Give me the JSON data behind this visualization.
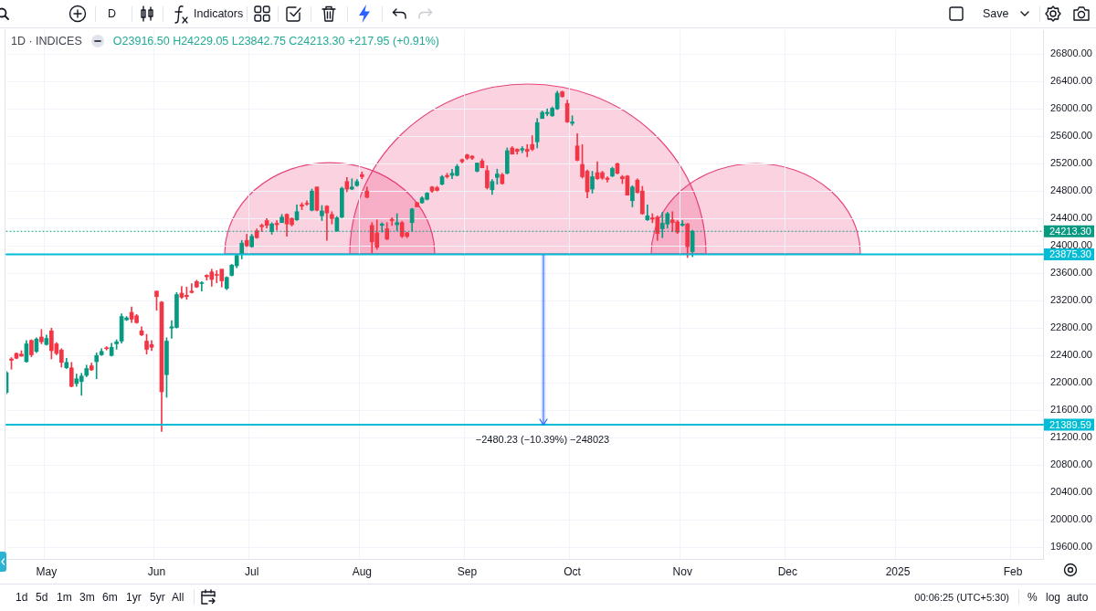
{
  "chart_data": {
    "type": "candlestick",
    "title": "1D · INDICES",
    "subtitle": "O23916.50 H24229.05 L23842.75 C24213.30 +217.95 (+0.91%)",
    "categories": [
      null,
      null,
      null,
      null,
      null,
      null,
      null,
      null,
      "May",
      null,
      null,
      null,
      null,
      null,
      null,
      null,
      null,
      null,
      null,
      null,
      null,
      null,
      null,
      null,
      null,
      null,
      null,
      null,
      null,
      null,
      "Jun",
      null,
      null,
      null,
      null,
      null,
      null,
      null,
      null,
      null,
      null,
      null,
      null,
      null,
      null,
      null,
      null,
      null,
      null,
      "Jul",
      null,
      null,
      null,
      null,
      null,
      null,
      null,
      null,
      null,
      null,
      null,
      null,
      null,
      null,
      null,
      null,
      null,
      null,
      null,
      null,
      null,
      "Aug",
      null,
      null,
      null,
      null,
      null,
      null,
      null,
      null,
      null,
      null,
      null,
      null,
      null,
      null,
      null,
      null,
      null,
      null,
      null,
      null,
      "Sep",
      null,
      null,
      null,
      null,
      null,
      null,
      null,
      null,
      null,
      null,
      null,
      null,
      null,
      null,
      null,
      null,
      null,
      null,
      null,
      null,
      "Oct",
      null,
      null,
      null,
      null,
      null,
      null,
      null,
      null,
      null,
      null,
      null,
      null,
      null,
      null,
      null,
      null,
      null,
      null,
      null,
      null,
      null,
      "Nov",
      null,
      null,
      null,
      null,
      null,
      null,
      null,
      null,
      null,
      null,
      null,
      null,
      null,
      null,
      null,
      null,
      null,
      null,
      null,
      null,
      "Dec",
      null,
      null,
      null,
      null,
      null,
      null,
      null,
      null,
      null,
      null,
      null,
      null,
      null,
      null,
      null,
      null,
      null,
      null,
      null,
      null,
      null,
      "2025",
      null,
      null,
      null,
      null,
      null,
      null,
      null,
      null,
      null,
      null,
      null,
      null,
      null,
      null,
      null,
      null,
      null,
      null,
      null,
      null,
      null,
      null,
      "Feb",
      null,
      null,
      null,
      null,
      null,
      null
    ],
    "ohlc": [
      [
        21860,
        22170,
        21840,
        22150
      ],
      [
        22350,
        22370,
        22200,
        22330
      ],
      [
        22430,
        22440,
        22350,
        22360
      ],
      [
        22420,
        22470,
        22390,
        22390
      ],
      [
        22310,
        22620,
        22300,
        22570
      ],
      [
        22620,
        22630,
        22380,
        22410
      ],
      [
        22460,
        22660,
        22440,
        22640
      ],
      [
        22670,
        22780,
        22570,
        22600
      ],
      [
        22560,
        22700,
        22550,
        22650
      ],
      [
        22760,
        22800,
        22350,
        22470
      ],
      [
        22570,
        22590,
        22410,
        22430
      ],
      [
        22480,
        22500,
        22230,
        22300
      ],
      [
        22220,
        22360,
        22210,
        22300
      ],
      [
        22220,
        22300,
        21940,
        21950
      ],
      [
        21990,
        22130,
        21950,
        22060
      ],
      [
        22020,
        22140,
        21820,
        22100
      ],
      [
        22110,
        22260,
        22090,
        22210
      ],
      [
        22250,
        22290,
        22180,
        22190
      ],
      [
        22310,
        22440,
        22060,
        22400
      ],
      [
        22410,
        22500,
        22400,
        22460
      ],
      [
        22510,
        22530,
        22480,
        22500
      ],
      [
        22400,
        22580,
        22390,
        22520
      ],
      [
        22570,
        22630,
        22490,
        22600
      ],
      [
        22610,
        23010,
        22580,
        22970
      ],
      [
        22920,
        22970,
        22910,
        22950
      ],
      [
        23030,
        23110,
        22880,
        22930
      ],
      [
        22980,
        23000,
        22870,
        22880
      ],
      [
        22760,
        22820,
        22690,
        22700
      ],
      [
        22610,
        22710,
        22420,
        22490
      ],
      [
        22560,
        22620,
        22470,
        22520
      ],
      [
        23340,
        23340,
        23060,
        23260
      ],
      [
        23180,
        23190,
        21290,
        21870
      ],
      [
        22120,
        22660,
        21790,
        22610
      ],
      [
        22800,
        22910,
        22650,
        22820
      ],
      [
        22810,
        23320,
        22800,
        23290
      ],
      [
        23310,
        23410,
        23230,
        23250
      ],
      [
        23280,
        23400,
        23220,
        23260
      ],
      [
        23340,
        23450,
        23310,
        23320
      ],
      [
        23480,
        23500,
        23390,
        23400
      ],
      [
        23450,
        23480,
        23340,
        23460
      ],
      [
        23570,
        23580,
        23500,
        23550
      ],
      [
        23620,
        23660,
        23410,
        23510
      ],
      [
        23580,
        23640,
        23460,
        23570
      ],
      [
        23660,
        23660,
        23400,
        23490
      ],
      [
        23380,
        23550,
        23360,
        23540
      ],
      [
        23570,
        23730,
        23560,
        23720
      ],
      [
        23710,
        23880,
        23680,
        23860
      ],
      [
        23880,
        24080,
        23810,
        24040
      ],
      [
        24080,
        24170,
        23990,
        24000
      ],
      [
        23990,
        24170,
        23980,
        24140
      ],
      [
        24220,
        24250,
        24110,
        24120
      ],
      [
        24300,
        24320,
        24210,
        24280
      ],
      [
        24370,
        24400,
        24260,
        24300
      ],
      [
        24210,
        24340,
        24170,
        24320
      ],
      [
        24330,
        24370,
        24230,
        24310
      ],
      [
        24340,
        24460,
        24340,
        24420
      ],
      [
        24460,
        24470,
        24140,
        24320
      ],
      [
        24400,
        24410,
        24290,
        24310
      ],
      [
        24380,
        24600,
        24370,
        24500
      ],
      [
        24600,
        24630,
        24530,
        24580
      ],
      [
        24620,
        24660,
        24590,
        24610
      ],
      [
        24520,
        24830,
        24510,
        24800
      ],
      [
        24860,
        24860,
        24510,
        24520
      ],
      [
        24440,
        24590,
        24370,
        24510
      ],
      [
        24580,
        24590,
        24080,
        24480
      ],
      [
        24460,
        24500,
        24320,
        24400
      ],
      [
        24220,
        24430,
        24210,
        24410
      ],
      [
        24420,
        24860,
        24410,
        24840
      ],
      [
        24940,
        25000,
        24790,
        24830
      ],
      [
        24830,
        24980,
        24820,
        24860
      ],
      [
        24880,
        24970,
        24870,
        24940
      ],
      [
        25040,
        25080,
        24980,
        25010
      ],
      [
        24800,
        24860,
        24700,
        24710
      ],
      [
        24300,
        24340,
        23900,
        24060
      ],
      [
        24190,
        24380,
        23950,
        23980
      ],
      [
        24300,
        24340,
        24200,
        24320
      ],
      [
        24250,
        24340,
        24090,
        24100
      ],
      [
        24390,
        24410,
        24300,
        24370
      ],
      [
        24310,
        24470,
        24220,
        24340
      ],
      [
        24340,
        24360,
        24120,
        24140
      ],
      [
        24190,
        24200,
        24120,
        24140
      ],
      [
        24340,
        24550,
        24210,
        24540
      ],
      [
        24630,
        24640,
        24570,
        24570
      ],
      [
        24630,
        24720,
        24620,
        24700
      ],
      [
        24680,
        24780,
        24670,
        24770
      ],
      [
        24860,
        24870,
        24780,
        24800
      ],
      [
        24850,
        24870,
        24800,
        24810
      ],
      [
        24900,
        25030,
        24890,
        25010
      ],
      [
        25030,
        25060,
        24990,
        25010
      ],
      [
        25030,
        25120,
        24980,
        25060
      ],
      [
        25030,
        25190,
        25020,
        25160
      ],
      [
        25260,
        25270,
        25210,
        25230
      ],
      [
        25330,
        25340,
        25260,
        25280
      ],
      [
        25310,
        25320,
        25260,
        25280
      ],
      [
        25090,
        25210,
        25080,
        25210
      ],
      [
        25240,
        25270,
        25140,
        25140
      ],
      [
        25100,
        25170,
        24830,
        24850
      ],
      [
        24820,
        24970,
        24750,
        24940
      ],
      [
        25000,
        25120,
        24900,
        25050
      ],
      [
        25040,
        25060,
        24900,
        24910
      ],
      [
        25060,
        25430,
        25050,
        25390
      ],
      [
        25430,
        25450,
        25340,
        25340
      ],
      [
        25410,
        25420,
        25340,
        25380
      ],
      [
        25400,
        25450,
        25360,
        25420
      ],
      [
        25410,
        25480,
        25300,
        25380
      ],
      [
        25480,
        25610,
        25390,
        25410
      ],
      [
        25520,
        25860,
        25430,
        25800
      ],
      [
        25860,
        25970,
        25860,
        25950
      ],
      [
        25930,
        26000,
        25900,
        25950
      ],
      [
        25900,
        26030,
        25890,
        26010
      ],
      [
        26000,
        26260,
        25990,
        26230
      ],
      [
        26250,
        26260,
        26170,
        26180
      ],
      [
        26080,
        26130,
        25800,
        25810
      ],
      [
        25790,
        25900,
        25760,
        25810
      ],
      [
        25460,
        25640,
        25240,
        25250
      ],
      [
        25190,
        25480,
        24990,
        25010
      ],
      [
        25090,
        25110,
        24700,
        24790
      ],
      [
        24830,
        25090,
        24770,
        25010
      ],
      [
        25070,
        25230,
        24970,
        24980
      ],
      [
        25070,
        25090,
        24970,
        24990
      ],
      [
        24990,
        25010,
        24930,
        24970
      ],
      [
        25020,
        25150,
        25010,
        25130
      ],
      [
        25200,
        25210,
        25050,
        25060
      ],
      [
        25010,
        25030,
        24910,
        24980
      ],
      [
        25020,
        25030,
        24740,
        24740
      ],
      [
        24660,
        24880,
        24570,
        24860
      ],
      [
        24960,
        24980,
        24770,
        24780
      ],
      [
        24800,
        24870,
        24460,
        24470
      ],
      [
        24380,
        24600,
        24370,
        24440
      ],
      [
        24410,
        24470,
        24340,
        24390
      ],
      [
        24420,
        24440,
        24080,
        24180
      ],
      [
        24250,
        24490,
        24120,
        24330
      ],
      [
        24320,
        24490,
        24260,
        24470
      ],
      [
        24380,
        24500,
        24210,
        24340
      ],
      [
        24350,
        24370,
        24180,
        24200
      ],
      [
        24300,
        24370,
        24290,
        24320
      ],
      [
        24320,
        24330,
        23830,
        23990
      ],
      [
        23916.5,
        24229.05,
        23842.75,
        24213.3
      ],
      null,
      null,
      null,
      null,
      null,
      null,
      null,
      null,
      null,
      null,
      null,
      null,
      null,
      null,
      null,
      null,
      null,
      null,
      null,
      null,
      null,
      null,
      null,
      null,
      null,
      null,
      null,
      null,
      null,
      null,
      null,
      null,
      null,
      null,
      null,
      null,
      null,
      null,
      null,
      null,
      null,
      null,
      null,
      null,
      null,
      null,
      null,
      null,
      null,
      null,
      null,
      null,
      null,
      null,
      null,
      null,
      null,
      null,
      null,
      null,
      null,
      null,
      null,
      null,
      null,
      null,
      null,
      null,
      null,
      null
    ],
    "colors": [
      "#089981",
      "#f23645",
      "#f23645",
      "#f23645",
      "#089981",
      "#f23645",
      "#089981",
      "#f23645",
      "#089981",
      "#f23645",
      "#f23645",
      "#f23645",
      "#089981",
      "#f23645",
      "#089981",
      "#089981",
      "#089981",
      "#f23645",
      "#089981",
      "#089981",
      "#f23645",
      "#089981",
      "#089981",
      "#089981",
      "#089981",
      "#f23645",
      "#f23645",
      "#f23645",
      "#f23645",
      "#f23645",
      "#f23645",
      "#f23645",
      "#089981",
      "#089981",
      "#089981",
      "#f23645",
      "#f23645",
      "#f23645",
      "#f23645",
      "#089981",
      "#f23645",
      "#f23645",
      "#f23645",
      "#f23645",
      "#089981",
      "#089981",
      "#089981",
      "#089981",
      "#f23645",
      "#089981",
      "#f23645",
      "#f23645",
      "#f23645",
      "#089981",
      "#f23645",
      "#089981",
      "#f23645",
      "#f23645",
      "#089981",
      "#f23645",
      "#f23645",
      "#089981",
      "#f23645",
      "#089981",
      "#f23645",
      "#f23645",
      "#089981",
      "#089981",
      "#f23645",
      "#089981",
      "#089981",
      "#f23645",
      "#f23645",
      "#f23645",
      "#f23645",
      "#089981",
      "#f23645",
      "#f23645",
      "#089981",
      "#f23645",
      "#f23645",
      "#089981",
      "#f23645",
      "#089981",
      "#089981",
      "#f23645",
      "#f23645",
      "#089981",
      "#f23645",
      "#089981",
      "#089981",
      "#f23645",
      "#f23645",
      "#f23645",
      "#089981",
      "#f23645",
      "#f23645",
      "#089981",
      "#089981",
      "#f23645",
      "#089981",
      "#f23645",
      "#f23645",
      "#089981",
      "#f23645",
      "#f23645",
      "#089981",
      "#089981",
      "#089981",
      "#089981",
      "#089981",
      "#f23645",
      "#f23645",
      "#089981",
      "#f23645",
      "#f23645",
      "#f23645",
      "#089981",
      "#f23645",
      "#f23645",
      "#f23645",
      "#089981",
      "#f23645",
      "#f23645",
      "#f23645",
      "#089981",
      "#f23645",
      "#f23645",
      "#089981",
      "#f23645",
      "#f23645",
      "#089981",
      "#089981",
      "#f23645",
      "#f23645",
      "#089981",
      "#f23645",
      "#089981",
      null,
      null,
      null,
      null,
      null,
      null,
      null,
      null,
      null,
      null,
      null,
      null,
      null,
      null,
      null,
      null,
      null,
      null,
      null,
      null,
      null,
      null,
      null,
      null,
      null,
      null,
      null,
      null,
      null,
      null,
      null,
      null,
      null,
      null,
      null,
      null,
      null,
      null,
      null,
      null,
      null,
      null,
      null,
      null,
      null,
      null,
      null,
      null,
      null,
      null,
      null,
      null,
      null,
      null,
      null,
      null,
      null,
      null,
      null,
      null,
      null,
      null,
      null,
      null,
      null,
      null,
      null,
      null,
      null,
      null
    ],
    "ylim": [
      19430,
      27150
    ],
    "yticks": [
      {
        "value": 19600,
        "label": "19600.00"
      },
      {
        "value": 20000,
        "label": "20000.00"
      },
      {
        "value": 20400,
        "label": "20400.00"
      },
      {
        "value": 20800,
        "label": "20800.00"
      },
      {
        "value": 21200,
        "label": "21200.00"
      },
      {
        "value": 21600,
        "label": "21600.00"
      },
      {
        "value": 22000,
        "label": "22000.00"
      },
      {
        "value": 22400,
        "label": "22400.00"
      },
      {
        "value": 22800,
        "label": "22800.00"
      },
      {
        "value": 23200,
        "label": "23200.00"
      },
      {
        "value": 23600,
        "label": "23600.00"
      },
      {
        "value": 24000,
        "label": "24000.00"
      },
      {
        "value": 24400,
        "label": "24400.00"
      },
      {
        "value": 24800,
        "label": "24800.00"
      },
      {
        "value": 25200,
        "label": "25200.00"
      },
      {
        "value": 25600,
        "label": "25600.00"
      },
      {
        "value": 26000,
        "label": "26000.00"
      },
      {
        "value": 26400,
        "label": "26400.00"
      },
      {
        "value": 26800,
        "label": "26800.00"
      }
    ],
    "ref_lines": [
      {
        "axis": "y",
        "value": 23875.3,
        "label": "23875.30",
        "color": "#00bcd4"
      },
      {
        "axis": "y",
        "value": 21389.59,
        "label": "21389.59",
        "color": "#00bcd4"
      },
      {
        "axis": "y",
        "value": 24213.3,
        "label": "24213.30",
        "color": "#089981",
        "line_style": "dotted"
      }
    ],
    "annotations": [
      {
        "text": "−2480.23 (−10.39%) −248023",
        "y": 21389.59
      },
      "D",
      "Indicators",
      "Save",
      "1d",
      "5d",
      "1m",
      "3m",
      "6m",
      "1yr",
      "5yr",
      "All",
      "00:06:25 (UTC+5:30)",
      "%",
      "log",
      "auto"
    ],
    "grid": true
  }
}
